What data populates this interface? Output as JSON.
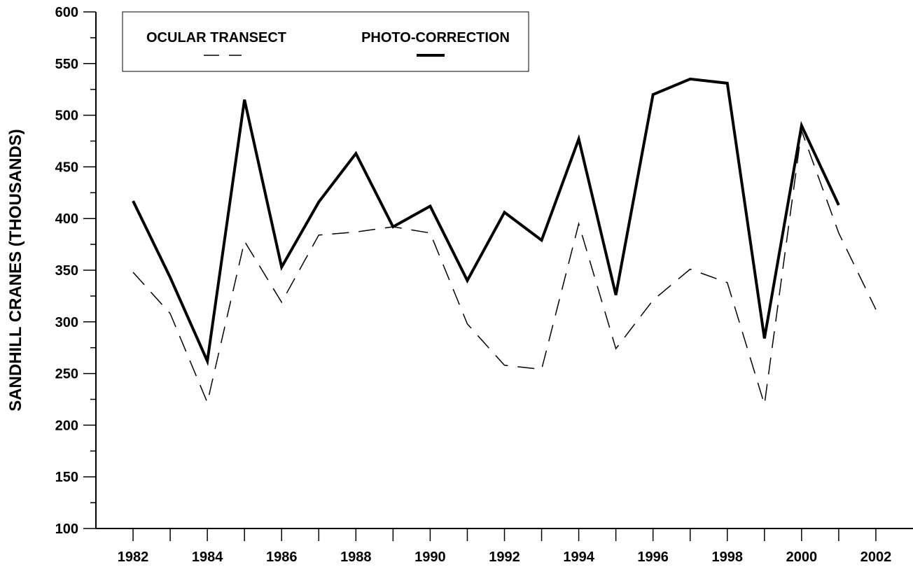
{
  "chart_data": {
    "type": "line",
    "y_label": "SANDHILL CRANES (THOUSANDS)",
    "x": [
      1982,
      1983,
      1984,
      1985,
      1986,
      1987,
      1988,
      1989,
      1990,
      1991,
      1992,
      1993,
      1994,
      1995,
      1996,
      1997,
      1998,
      1999,
      2000,
      2001,
      2002
    ],
    "series": [
      {
        "name": "OCULAR TRANSECT",
        "color": "#000000",
        "dash": true,
        "values": [
          348,
          308,
          222,
          378,
          319,
          384,
          387,
          392,
          386,
          298,
          258,
          254,
          395,
          274,
          321,
          351,
          338,
          220,
          485,
          386,
          312
        ]
      },
      {
        "name": "PHOTO-CORRECTION",
        "color": "#000000",
        "dash": false,
        "values": [
          417,
          343,
          262,
          515,
          353,
          416,
          463,
          392,
          412,
          340,
          406,
          379,
          477,
          326,
          520,
          535,
          531,
          284,
          490,
          413,
          null
        ]
      }
    ],
    "xlim": [
      1981,
      2003
    ],
    "xticks": [
      1982,
      {
        "value": 1983,
        "label": null
      },
      1984,
      {
        "value": 1985,
        "label": null
      },
      1986,
      {
        "value": 1987,
        "label": null
      },
      1988,
      {
        "value": 1989,
        "label": null
      },
      1990,
      {
        "value": 1991,
        "label": null
      },
      1992,
      {
        "value": 1993,
        "label": null
      },
      1994,
      {
        "value": 1995,
        "label": null
      },
      1996,
      {
        "value": 1997,
        "label": null
      },
      1998,
      {
        "value": 1999,
        "label": null
      },
      2000,
      {
        "value": 2001,
        "label": null
      },
      2002
    ],
    "ylim": [
      100,
      600
    ],
    "yticks": [
      100,
      {
        "value": 125,
        "label": null
      },
      150,
      {
        "value": 175,
        "label": null
      },
      200,
      {
        "value": 225,
        "label": null
      },
      250,
      {
        "value": 275,
        "label": null
      },
      300,
      {
        "value": 325,
        "label": null
      },
      350,
      {
        "value": 375,
        "label": null
      },
      400,
      {
        "value": 425,
        "label": null
      },
      450,
      {
        "value": 475,
        "label": null
      },
      500,
      {
        "value": 525,
        "label": null
      },
      550,
      {
        "value": 575,
        "label": null
      },
      600
    ],
    "legend": "top-left",
    "grid": false
  }
}
